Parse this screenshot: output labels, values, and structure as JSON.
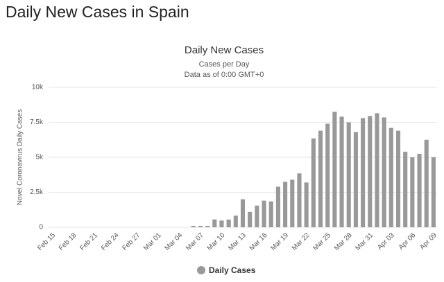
{
  "header": {
    "title": "Daily New Cases in Spain"
  },
  "chart_data": {
    "type": "bar",
    "title": "Daily New Cases",
    "subtitle": "Cases per Day",
    "note": "Data as of 0:00 GMT+0",
    "y_label": "Novel Coronavirus Daily Cases",
    "categories": [
      "Feb 15",
      null,
      null,
      "Feb 18",
      null,
      null,
      "Feb 21",
      null,
      null,
      "Feb 24",
      null,
      null,
      "Feb 27",
      null,
      null,
      "Mar 01",
      null,
      null,
      "Mar 04",
      null,
      null,
      "Mar 07",
      null,
      null,
      "Mar 10",
      null,
      null,
      "Mar 13",
      null,
      null,
      "Mar 16",
      null,
      null,
      "Mar 19",
      null,
      null,
      "Mar 22",
      null,
      null,
      "Mar 25",
      null,
      null,
      "Mar 28",
      null,
      null,
      "Mar 31",
      null,
      null,
      "Apr 03",
      null,
      null,
      "Apr 06",
      null,
      null,
      "Apr 09"
    ],
    "series": [
      {
        "name": "Daily Cases",
        "color": "#999999",
        "values": [
          0,
          0,
          0,
          0,
          0,
          0,
          0,
          0,
          0,
          0,
          0,
          0,
          0,
          0,
          0,
          0,
          0,
          0,
          0,
          0,
          100,
          100,
          100,
          560,
          480,
          550,
          830,
          2000,
          1100,
          1550,
          1900,
          1850,
          2900,
          3250,
          3400,
          3850,
          3200,
          6350,
          6900,
          7400,
          8250,
          7900,
          7500,
          6800,
          7800,
          7950,
          8150,
          7850,
          7100,
          6900,
          5400,
          5000,
          5250,
          6250,
          5000
        ]
      }
    ],
    "ylim": [
      0,
      10000
    ],
    "yticks": [
      0,
      {
        "value": 2500,
        "label": "2.5k"
      },
      {
        "value": 5000,
        "label": "5k"
      },
      {
        "value": 7500,
        "label": "7.5k"
      },
      {
        "value": 10000,
        "label": "10k"
      }
    ],
    "grid": true,
    "legend": "bottom"
  }
}
